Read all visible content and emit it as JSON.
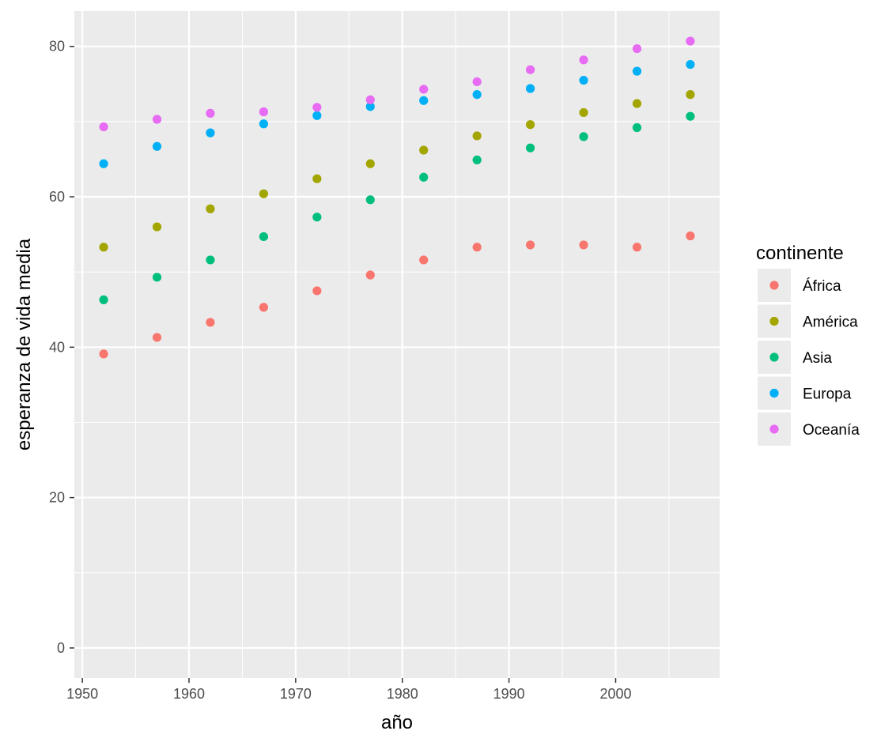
{
  "chart_data": {
    "type": "scatter",
    "title": "",
    "xlabel": "año",
    "ylabel": "esperanza de vida media",
    "xlim": [
      1949.25,
      2009.75
    ],
    "ylim": [
      -4.0,
      84.7
    ],
    "x_ticks": [
      1950,
      1960,
      1970,
      1980,
      1990,
      2000
    ],
    "y_ticks": [
      0,
      20,
      40,
      60,
      80
    ],
    "grid": true,
    "panel_background": "#EBEBEB",
    "grid_color": "#FFFFFF",
    "legend": {
      "title": "continente",
      "position": "right"
    },
    "x": [
      1952,
      1957,
      1962,
      1967,
      1972,
      1977,
      1982,
      1987,
      1992,
      1997,
      2002,
      2007
    ],
    "series": [
      {
        "name": "África",
        "color": "#F8766D",
        "values": [
          39.1,
          41.3,
          43.3,
          45.3,
          47.5,
          49.6,
          51.6,
          53.3,
          53.6,
          53.6,
          53.3,
          54.8
        ]
      },
      {
        "name": "América",
        "color": "#A3A500",
        "values": [
          53.3,
          56.0,
          58.4,
          60.4,
          62.4,
          64.4,
          66.2,
          68.1,
          69.6,
          71.2,
          72.4,
          73.6
        ]
      },
      {
        "name": "Asia",
        "color": "#00BF7D",
        "values": [
          46.3,
          49.3,
          51.6,
          54.7,
          57.3,
          59.6,
          62.6,
          64.9,
          66.5,
          68.0,
          69.2,
          70.7
        ]
      },
      {
        "name": "Europa",
        "color": "#00B0F6",
        "values": [
          64.4,
          66.7,
          68.5,
          69.7,
          70.8,
          72.0,
          72.8,
          73.6,
          74.4,
          75.5,
          76.7,
          77.6
        ]
      },
      {
        "name": "Oceanía",
        "color": "#E76BF3",
        "values": [
          69.3,
          70.3,
          71.1,
          71.3,
          71.9,
          72.9,
          74.3,
          75.3,
          76.9,
          78.2,
          79.7,
          80.7
        ]
      }
    ]
  }
}
